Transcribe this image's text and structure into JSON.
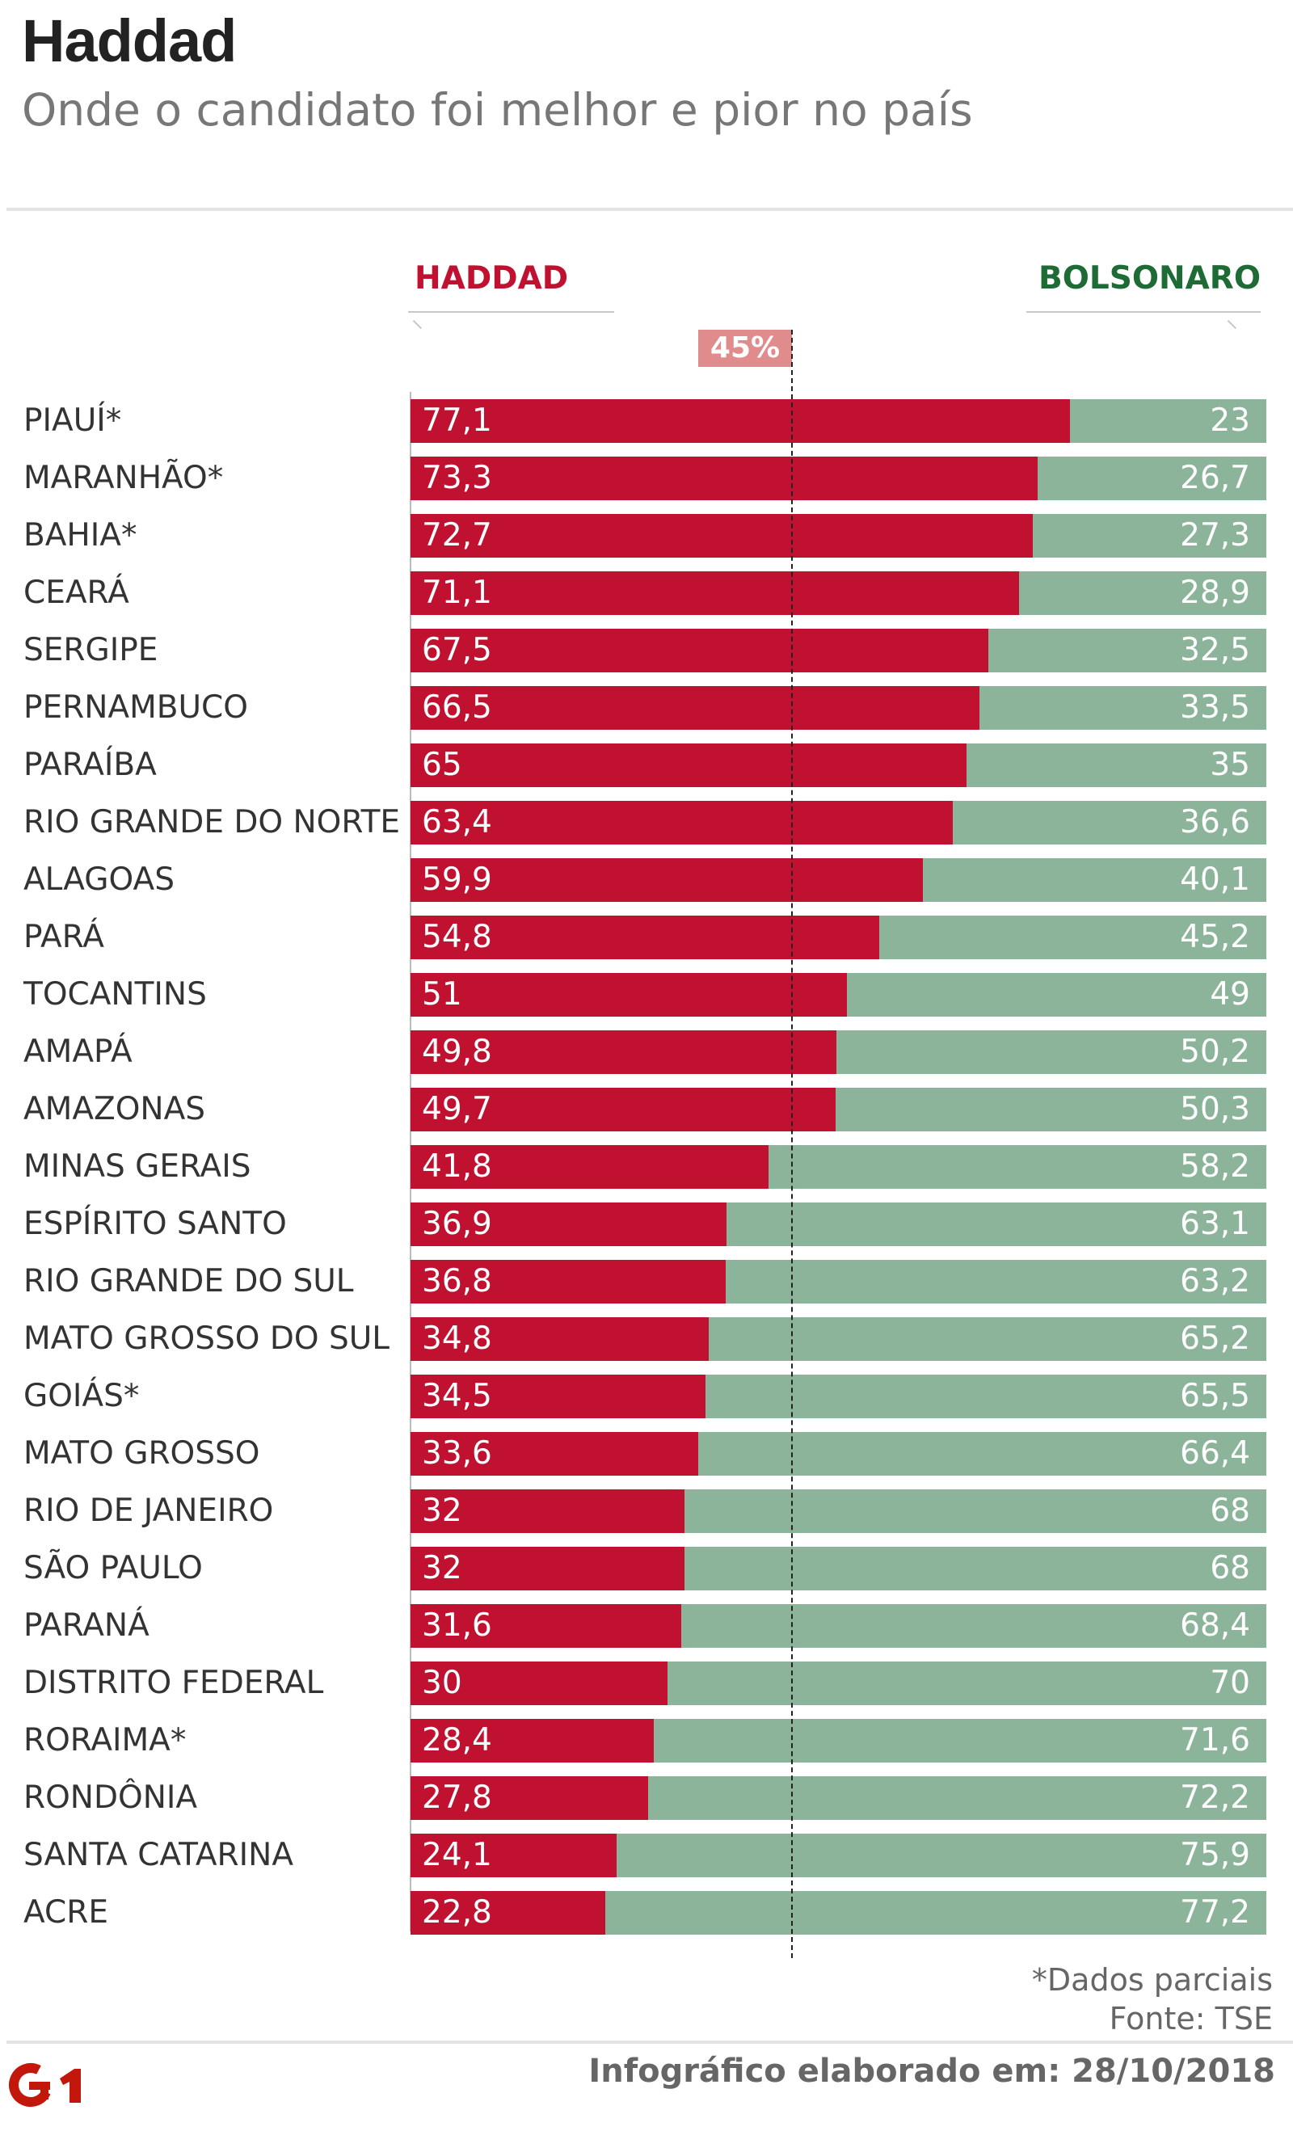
{
  "header": {
    "title": "Haddad",
    "subtitle": "Onde o candidato foi melhor e pior no país"
  },
  "legend": {
    "left": "HADDAD",
    "right": "BOLSONARO"
  },
  "reference": {
    "label": "45%",
    "value": 45
  },
  "colors": {
    "haddad": "#c01230",
    "bolsonaro": "#8cb49a",
    "reference_badge": "#e08c8c"
  },
  "chart_data": {
    "type": "bar",
    "orientation": "horizontal-stacked-100",
    "title": "Haddad",
    "subtitle": "Onde o candidato foi melhor e pior no país",
    "xlim": [
      0,
      100
    ],
    "reference_line": {
      "value": 45,
      "label": "45%"
    },
    "categories": [
      "PIAUÍ*",
      "MARANHÃO*",
      "BAHIA*",
      "CEARÁ",
      "SERGIPE",
      "PERNAMBUCO",
      "PARAÍBA",
      "RIO GRANDE DO NORTE",
      "ALAGOAS",
      "PARÁ",
      "TOCANTINS",
      "AMAPÁ",
      "AMAZONAS",
      "MINAS GERAIS",
      "ESPÍRITO SANTO",
      "RIO GRANDE DO SUL",
      "MATO GROSSO DO SUL",
      "GOIÁS*",
      "MATO GROSSO",
      "RIO DE JANEIRO",
      "SÃO PAULO",
      "PARANÁ",
      "DISTRITO FEDERAL",
      "RORAIMA*",
      "RONDÔNIA",
      "SANTA CATARINA",
      "ACRE"
    ],
    "series": [
      {
        "name": "HADDAD",
        "values": [
          77.1,
          73.3,
          72.7,
          71.1,
          67.5,
          66.5,
          65,
          63.4,
          59.9,
          54.8,
          51,
          49.8,
          49.7,
          41.8,
          36.9,
          36.8,
          34.8,
          34.5,
          33.6,
          32,
          32,
          31.6,
          30,
          28.4,
          27.8,
          24.1,
          22.8
        ],
        "labels": [
          "77,1",
          "73,3",
          "72,7",
          "71,1",
          "67,5",
          "66,5",
          "65",
          "63,4",
          "59,9",
          "54,8",
          "51",
          "49,8",
          "49,7",
          "41,8",
          "36,9",
          "36,8",
          "34,8",
          "34,5",
          "33,6",
          "32",
          "32",
          "31,6",
          "30",
          "28,4",
          "27,8",
          "24,1",
          "22,8"
        ]
      },
      {
        "name": "BOLSONARO",
        "values": [
          23,
          26.7,
          27.3,
          28.9,
          32.5,
          33.5,
          35,
          36.6,
          40.1,
          45.2,
          49,
          50.2,
          50.3,
          58.2,
          63.1,
          63.2,
          65.2,
          65.5,
          66.4,
          68,
          68,
          68.4,
          70,
          71.6,
          72.2,
          75.9,
          77.2
        ],
        "labels": [
          "23",
          "26,7",
          "27,3",
          "28,9",
          "32,5",
          "33,5",
          "35",
          "36,6",
          "40,1",
          "45,2",
          "49",
          "50,2",
          "50,3",
          "58,2",
          "63,1",
          "63,2",
          "65,2",
          "65,5",
          "66,4",
          "68",
          "68",
          "68,4",
          "70",
          "71,6",
          "72,2",
          "75,9",
          "77,2"
        ]
      }
    ]
  },
  "footer": {
    "note": "*Dados parciais",
    "source": "Fonte: TSE",
    "credit": "Infográfico elaborado em: 28/10/2018",
    "logo_text": "G1"
  }
}
